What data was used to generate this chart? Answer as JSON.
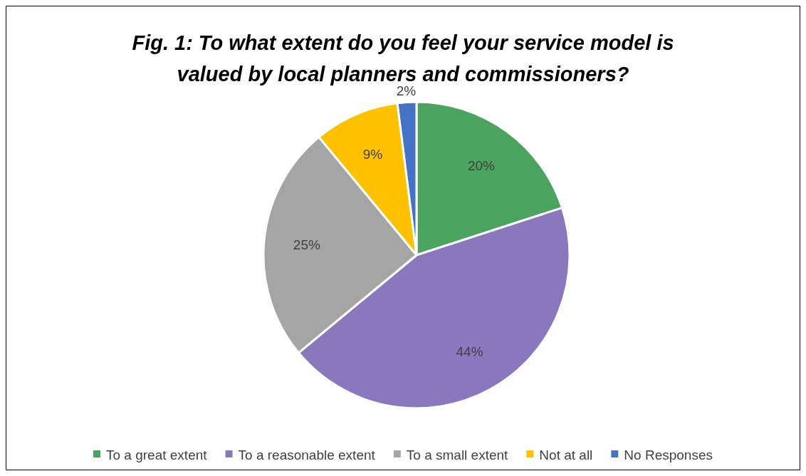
{
  "chart_data": {
    "type": "pie",
    "title": "Fig. 1: To what extent do you feel your service model is valued by local planners and commissioners?",
    "categories": [
      "To a great extent",
      "To a reasonable extent",
      "To a small extent",
      "Not at all",
      "No Responses"
    ],
    "values": [
      20,
      44,
      25,
      9,
      2
    ],
    "colors": [
      "#4aa35f",
      "#8a78be",
      "#a5a5a5",
      "#ffc000",
      "#4472c4"
    ],
    "value_labels": [
      "20%",
      "44%",
      "25%",
      "9%",
      "2%"
    ],
    "legend": "bottom"
  }
}
